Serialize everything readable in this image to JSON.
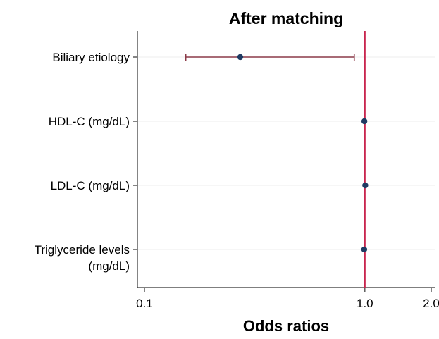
{
  "chart_data": {
    "type": "forest",
    "title": "After matching",
    "xlabel": "Odds ratios",
    "ylabel": "",
    "xscale": "log",
    "xlim": [
      0.1,
      2.0
    ],
    "xticks": [
      {
        "value": 0.1,
        "label": "0.1"
      },
      {
        "value": 1.0,
        "label": "1.0"
      },
      {
        "value": 2.0,
        "label": "2.0"
      }
    ],
    "reference_line": 1.0,
    "grid": "horizontal",
    "legend": "none",
    "categories": [
      [
        "Biliary etiology"
      ],
      [
        "HDL-C (mg/dL)"
      ],
      [
        "LDL-C (mg/dL)"
      ],
      [
        "Triglyceride levels",
        "(mg/dL)"
      ]
    ],
    "estimates": [
      0.272,
      0.995,
      1.004,
      0.993
    ],
    "ci_lower": [
      0.154,
      null,
      null,
      null
    ],
    "ci_upper": [
      0.895,
      null,
      null,
      null
    ],
    "colors": {
      "point": "#1f3b63",
      "ci_line": "#8b3a48",
      "reference_line": "#c8254e",
      "gridline": "#ececec",
      "axis": "#333333"
    }
  }
}
